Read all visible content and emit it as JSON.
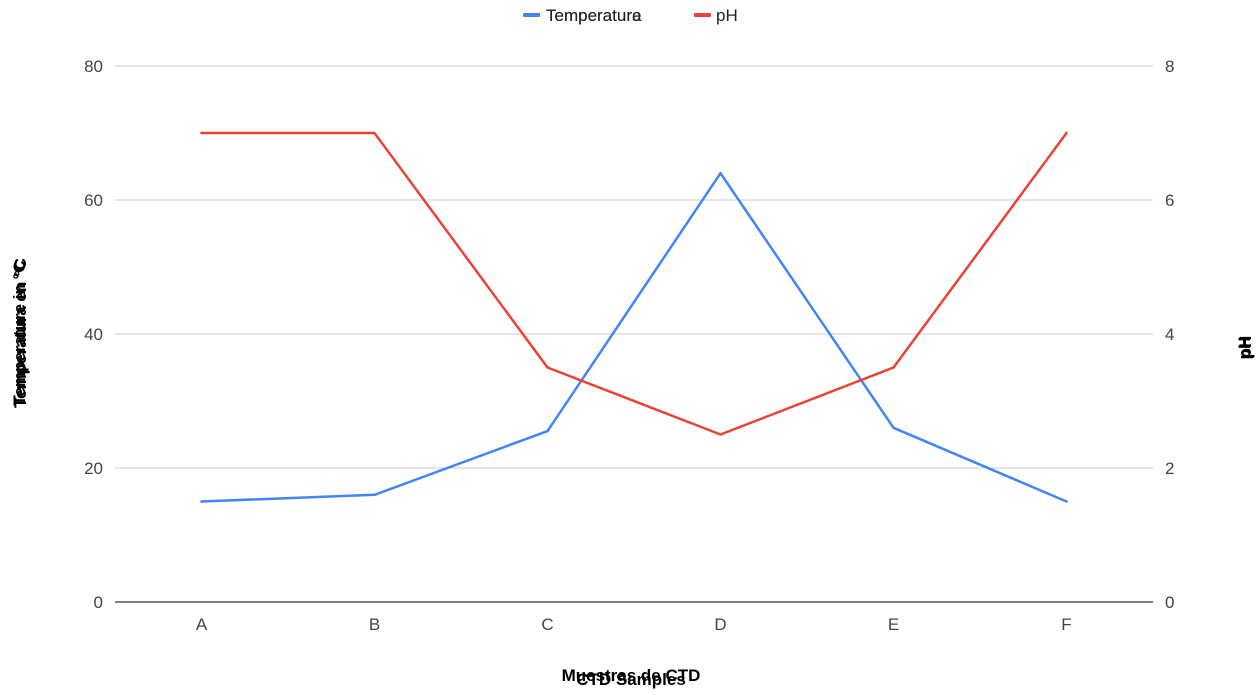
{
  "chart_data": {
    "type": "line",
    "categories": [
      "A",
      "B",
      "C",
      "D",
      "E",
      "F"
    ],
    "series": [
      {
        "name": "Temperatura",
        "axis": "left",
        "color": "#4285f4",
        "values": [
          15,
          16,
          25.5,
          64,
          26,
          15
        ]
      },
      {
        "name": "pH",
        "axis": "right",
        "color": "#ea4335",
        "values": [
          7,
          7,
          3.5,
          2.5,
          3.5,
          7
        ]
      }
    ],
    "xlabel": "Muestras de CTD",
    "xlabel_overlay": "CTD Samples",
    "ylabel": "Temperatura en °C",
    "ylabel_overlay": "Temperature in °C",
    "y2label": "pH",
    "y2label_overlay": "pH",
    "legend_overlay": "Temperature",
    "ylim": [
      0,
      80
    ],
    "y2lim": [
      0,
      8
    ],
    "yticks": [
      "0",
      "20",
      "40",
      "60",
      "80"
    ],
    "y2ticks": [
      "0",
      "2",
      "4",
      "6",
      "8"
    ],
    "grid": true,
    "legend_position": "top"
  }
}
